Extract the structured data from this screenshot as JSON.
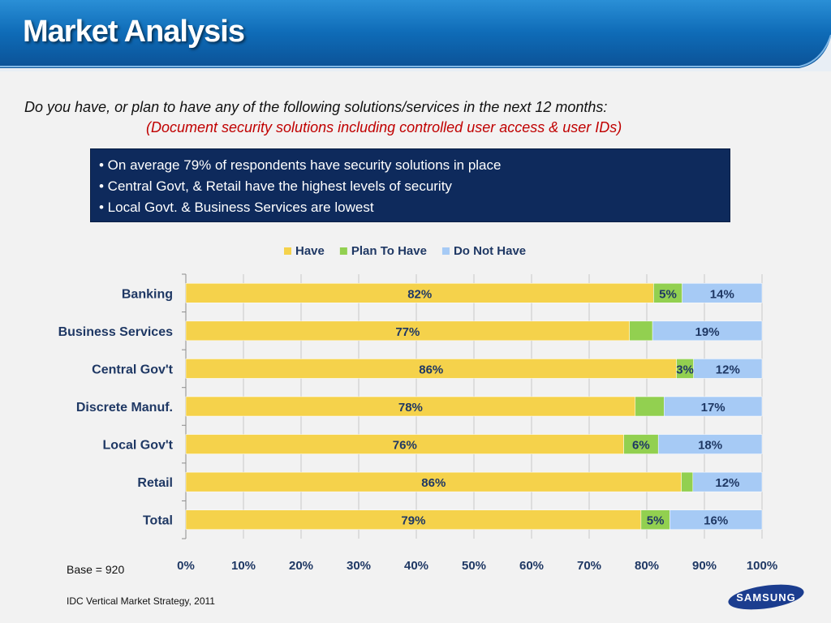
{
  "header": {
    "title": "Market Analysis"
  },
  "question": "Do you have, or plan to have any of the following solutions/services in the next 12 months:",
  "subtitle": "(Document security solutions including controlled user access & user IDs)",
  "bullets": [
    "• On average 79% of respondents have security solutions in place",
    "• Central Govt, & Retail have the highest levels of security",
    "• Local Govt. & Business Services are lowest"
  ],
  "base_note": "Base = 920",
  "source": "IDC Vertical Market Strategy, 2011",
  "logo": {
    "text": "SAMSUNG"
  },
  "colors": {
    "header": "#0f6cb8",
    "bullet_box": "#0e2a5c",
    "subtitle": "#c00000",
    "tick_text": "#1f3864"
  },
  "chart_data": {
    "type": "bar",
    "orientation": "horizontal",
    "stacked": true,
    "title": "",
    "xlabel": "",
    "ylabel": "",
    "categories": [
      "Banking",
      "Business Services",
      "Central Gov't",
      "Discrete Manuf.",
      "Local Gov't",
      "Retail",
      "Total"
    ],
    "series": [
      {
        "name": "Have",
        "color": "#f5d24b",
        "values": [
          82,
          77,
          86,
          78,
          76,
          86,
          79
        ],
        "labels": [
          "82%",
          "77%",
          "86%",
          "78%",
          "76%",
          "86%",
          "79%"
        ]
      },
      {
        "name": "Plan To Have",
        "color": "#92d050",
        "values": [
          5,
          4,
          3,
          5,
          6,
          2,
          5
        ],
        "labels": [
          "5%",
          "",
          "3%",
          "",
          "6%",
          "",
          "5%"
        ]
      },
      {
        "name": "Do Not Have",
        "color": "#a6caf5",
        "values": [
          14,
          19,
          12,
          17,
          18,
          12,
          16
        ],
        "labels": [
          "14%",
          "19%",
          "12%",
          "17%",
          "18%",
          "12%",
          "16%"
        ]
      }
    ],
    "xlim": [
      0,
      100
    ],
    "x_ticks": [
      "0%",
      "10%",
      "20%",
      "30%",
      "40%",
      "50%",
      "60%",
      "70%",
      "80%",
      "90%",
      "100%"
    ],
    "grid": true,
    "legend": "top-center"
  }
}
